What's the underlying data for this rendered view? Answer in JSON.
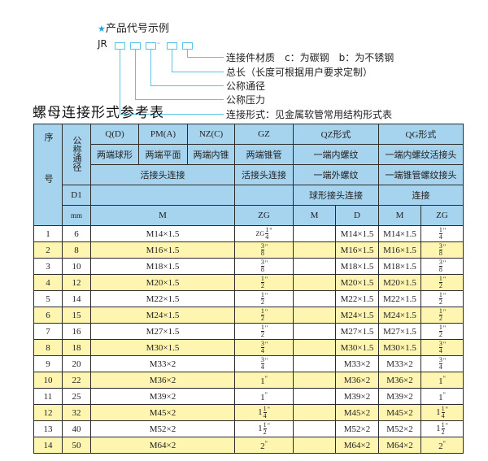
{
  "example": {
    "title": "产品代号示例",
    "code": "JR",
    "dash": "-",
    "labels": [
      "连接件材质　c：为碳钢　b：为不锈钢",
      "总长（长度可根据用户要求定制）",
      "公称通径",
      "公称压力",
      "连接形式：见金属软管常用结构形式表"
    ],
    "accent": "#5bc3e6"
  },
  "section_title": "螺母连接形式参考表",
  "table": {
    "header_color": "#a6d3ee",
    "stripe_color": "#fdf5b0",
    "h": {
      "seq": "序号",
      "dn": "公称通径",
      "q": "Q(D)",
      "pm": "PM(A)",
      "nz": "NZ(C)",
      "gz": "GZ",
      "qz": "QZ形式",
      "qg": "QG形式",
      "q2": "两端球形",
      "pm2": "两端平面",
      "nz2": "两端内锥",
      "gz2": "两端锥管",
      "qz2": "一端内螺纹",
      "qg2": "一端内螺纹活接头",
      "hj": "活接头连接",
      "gz3": "活接头连接",
      "qz3": "一端外螺纹",
      "qg3": "一端锥管螺纹接头",
      "d1": "D1",
      "qz4": "球形接头连接",
      "qg4": "连接",
      "mm": "mm",
      "m": "M",
      "zg": "ZG",
      "qzm": "M",
      "qzd": "D",
      "qgm": "M",
      "qgzg": "ZG"
    },
    "rows": [
      {
        "no": "1",
        "dn": "6",
        "m": "M14×1.5",
        "zg": {
          "prefix": "ZG",
          "whole": "",
          "num": "1",
          "den": "4"
        },
        "d": "M14×1.5",
        "qgm": "M14×1.5",
        "qgzg": {
          "whole": "",
          "num": "1",
          "den": "4"
        }
      },
      {
        "no": "2",
        "dn": "8",
        "m": "M16×1.5",
        "zg": {
          "whole": "",
          "num": "3",
          "den": "8"
        },
        "d": "M16×1.5",
        "qgm": "M16×1.5",
        "qgzg": {
          "whole": "",
          "num": "3",
          "den": "8"
        }
      },
      {
        "no": "3",
        "dn": "10",
        "m": "M18×1.5",
        "zg": {
          "whole": "",
          "num": "3",
          "den": "8"
        },
        "d": "M18×1.5",
        "qgm": "M18×1.5",
        "qgzg": {
          "whole": "",
          "num": "3",
          "den": "8"
        }
      },
      {
        "no": "4",
        "dn": "12",
        "m": "M20×1.5",
        "zg": {
          "whole": "",
          "num": "1",
          "den": "2"
        },
        "d": "M20×1.5",
        "qgm": "M20×1.5",
        "qgzg": {
          "whole": "",
          "num": "1",
          "den": "2"
        }
      },
      {
        "no": "5",
        "dn": "14",
        "m": "M22×1.5",
        "zg": {
          "whole": "",
          "num": "1",
          "den": "2"
        },
        "d": "M22×1.5",
        "qgm": "M22×1.5",
        "qgzg": {
          "whole": "",
          "num": "1",
          "den": "2"
        }
      },
      {
        "no": "6",
        "dn": "15",
        "m": "M24×1.5",
        "zg": {
          "whole": "",
          "num": "1",
          "den": "2"
        },
        "d": "M24×1.5",
        "qgm": "M24×1.5",
        "qgzg": {
          "whole": "",
          "num": "1",
          "den": "2"
        }
      },
      {
        "no": "7",
        "dn": "16",
        "m": "M27×1.5",
        "zg": {
          "whole": "",
          "num": "1",
          "den": "2"
        },
        "d": "M27×1.5",
        "qgm": "M27×1.5",
        "qgzg": {
          "whole": "",
          "num": "1",
          "den": "2"
        }
      },
      {
        "no": "8",
        "dn": "18",
        "m": "M30×1.5",
        "zg": {
          "whole": "",
          "num": "3",
          "den": "4"
        },
        "d": "M30×1.5",
        "qgm": "M30×1.5",
        "qgzg": {
          "whole": "",
          "num": "3",
          "den": "4"
        }
      },
      {
        "no": "9",
        "dn": "20",
        "m": "M33×2",
        "zg": {
          "whole": "",
          "num": "3",
          "den": "4"
        },
        "d": "M33×2",
        "qgm": "M33×2",
        "qgzg": {
          "whole": "",
          "num": "3",
          "den": "4"
        }
      },
      {
        "no": "10",
        "dn": "22",
        "m": "M36×2",
        "zg": {
          "whole": "1"
        },
        "d": "M36×2",
        "qgm": "M36×2",
        "qgzg": {
          "whole": "1"
        }
      },
      {
        "no": "11",
        "dn": "25",
        "m": "M39×2",
        "zg": {
          "whole": "1"
        },
        "d": "M39×2",
        "qgm": "M39×2",
        "qgzg": {
          "whole": "1"
        }
      },
      {
        "no": "12",
        "dn": "32",
        "m": "M45×2",
        "zg": {
          "whole": "1",
          "num": "1",
          "den": "4"
        },
        "d": "M45×2",
        "qgm": "M45×2",
        "qgzg": {
          "whole": "1",
          "num": "1",
          "den": "4"
        }
      },
      {
        "no": "13",
        "dn": "40",
        "m": "M52×2",
        "zg": {
          "whole": "1",
          "num": "1",
          "den": "2"
        },
        "d": "M52×2",
        "qgm": "M52×2",
        "qgzg": {
          "whole": "1",
          "num": "1",
          "den": "2"
        }
      },
      {
        "no": "14",
        "dn": "50",
        "m": "M64×2",
        "zg": {
          "whole": "2"
        },
        "d": "M64×2",
        "qgm": "M64×2",
        "qgzg": {
          "whole": "2"
        }
      }
    ],
    "inch_mark": "\""
  }
}
